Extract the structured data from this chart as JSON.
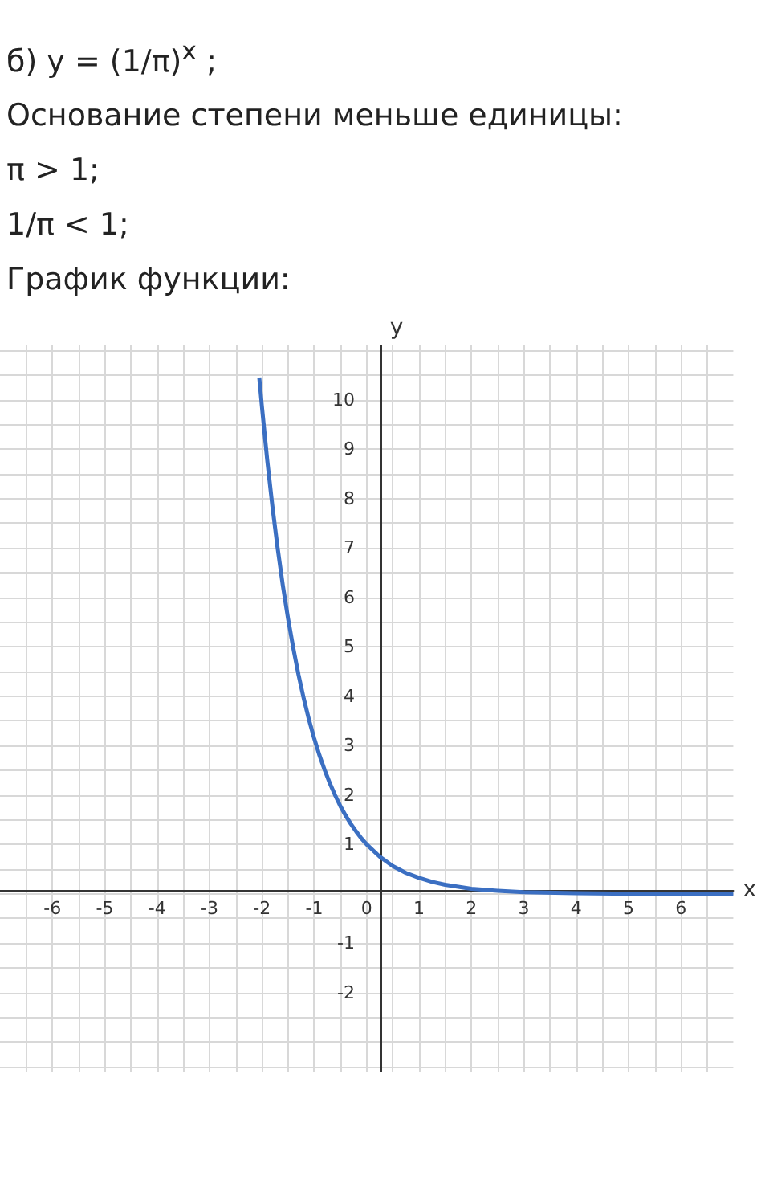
{
  "chart_data": {
    "type": "line",
    "title": "б) y = (1/π)$^{x}$ ;",
    "annotations": [
      "Основание степени меньше единицы:",
      "π > 1;",
      "1/π < 1;",
      "График функции:"
    ],
    "xlabel": "x",
    "ylabel": "y",
    "x": [
      -2.05,
      -2,
      -1.9,
      -1.8,
      -1.7,
      -1.6,
      -1.5,
      -1.4,
      -1.3,
      -1.2,
      -1.1,
      -1,
      -0.9,
      -0.8,
      -0.7,
      -0.6,
      -0.5,
      -0.4,
      -0.3,
      -0.2,
      -0.1,
      0,
      0.25,
      0.5,
      0.75,
      1,
      1.25,
      1.5,
      2,
      2.5,
      3,
      4,
      5,
      6,
      7
    ],
    "series": [
      {
        "color": "#3b6fc2",
        "values": [
          10.45,
          9.87,
          8.8,
          7.85,
          7,
          6.24,
          5.57,
          4.97,
          4.43,
          3.95,
          3.52,
          3.14,
          2.8,
          2.5,
          2.23,
          1.99,
          1.77,
          1.58,
          1.41,
          1.26,
          1.12,
          1,
          0.75,
          0.56,
          0.42,
          0.32,
          0.24,
          0.18,
          0.1,
          0.06,
          0.03,
          0.01,
          0,
          0,
          0
        ]
      }
    ],
    "xlim": [
      -7,
      7
    ],
    "ylim": [
      -3.6,
      11.1
    ],
    "xticks": [
      {
        "value": -6.5,
        "label": null
      },
      -6,
      {
        "value": -5.5,
        "label": null
      },
      -5,
      {
        "value": -4.5,
        "label": null
      },
      -4,
      {
        "value": -3.5,
        "label": null
      },
      -3,
      {
        "value": -2.5,
        "label": null
      },
      -2,
      {
        "value": -1.5,
        "label": null
      },
      -1,
      {
        "value": -0.5,
        "label": null
      },
      0,
      {
        "value": 0.5,
        "label": null
      },
      1,
      {
        "value": 1.5,
        "label": null
      },
      2,
      {
        "value": 2.5,
        "label": null
      },
      3,
      {
        "value": 3.5,
        "label": null
      },
      4,
      {
        "value": 4.5,
        "label": null
      },
      5,
      {
        "value": 5.5,
        "label": null
      },
      6,
      {
        "value": 6.5,
        "label": null
      }
    ],
    "yticks": [
      {
        "value": -3.5,
        "label": null
      },
      {
        "value": -3,
        "label": null
      },
      {
        "value": -2.5,
        "label": null
      },
      -2,
      {
        "value": -1.5,
        "label": null
      },
      -1,
      {
        "value": -0.5,
        "label": null
      },
      {
        "value": 0,
        "label": null
      },
      {
        "value": 0.5,
        "label": null
      },
      1,
      {
        "value": 1.5,
        "label": null
      },
      2,
      {
        "value": 2.5,
        "label": null
      },
      3,
      {
        "value": 3.5,
        "label": null
      },
      4,
      {
        "value": 4.5,
        "label": null
      },
      5,
      {
        "value": 5.5,
        "label": null
      },
      6,
      {
        "value": 6.5,
        "label": null
      },
      7,
      {
        "value": 7.5,
        "label": null
      },
      8,
      {
        "value": 8.5,
        "label": null
      },
      9,
      {
        "value": 9.5,
        "label": null
      },
      10,
      {
        "value": 10.5,
        "label": null
      },
      {
        "value": 11,
        "label": null
      }
    ],
    "grid": true,
    "marker": "none",
    "line_style": "solid"
  }
}
